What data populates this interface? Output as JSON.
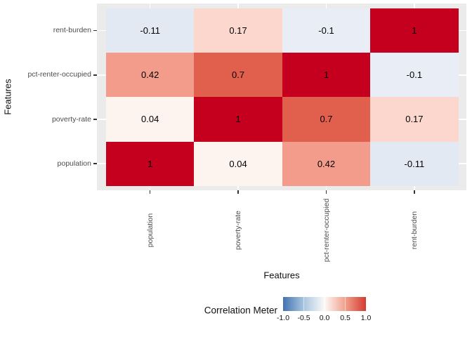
{
  "chart_data": {
    "type": "heatmap",
    "title": "",
    "xlabel": "Features",
    "ylabel": "Features",
    "x_categories": [
      "population",
      "poverty-rate",
      "pct-renter-occupied",
      "rent-burden"
    ],
    "y_categories": [
      "rent-burden",
      "pct-renter-occupied",
      "poverty-rate",
      "population"
    ],
    "values": [
      [
        -0.11,
        0.17,
        -0.1,
        1
      ],
      [
        0.42,
        0.7,
        1,
        -0.1
      ],
      [
        0.04,
        1,
        0.7,
        0.17
      ],
      [
        1,
        0.04,
        0.42,
        -0.11
      ]
    ],
    "cell_colors": {
      "1": "#C5001F",
      "0.7": "#E0604D",
      "0.42": "#F49C8C",
      "0.17": "#FCD7CD",
      "0.04": "#FDF3EF",
      "-0.1": "#E9EDF5",
      "-0.11": "#E3E9F2"
    },
    "panel_bg": "#EBEBEB",
    "grid_color": "#FFFFFF",
    "tick_color": "#333333",
    "axis_text_color": "#4D4D4D",
    "legend": {
      "title": "Correlation Meter",
      "tick_labels": [
        "-1.0",
        "-0.5",
        "0.0",
        "0.5",
        "1.0"
      ],
      "range": [
        -1.0,
        1.0
      ],
      "gradient_stops": [
        "#4272B2",
        "#A9C6E0",
        "#FBF9F8",
        "#F1A08C",
        "#D53A2F"
      ]
    }
  }
}
